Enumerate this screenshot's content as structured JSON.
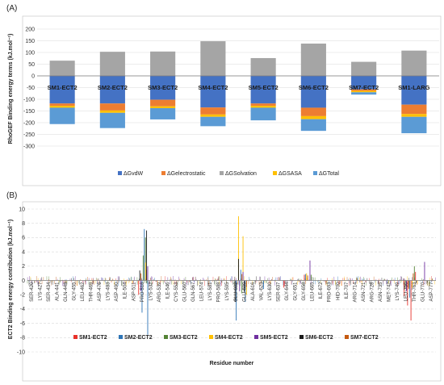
{
  "chart_data": [
    {
      "type": "bar",
      "panel_label": "(A)",
      "stacked": true,
      "ylabel": "RhoGEF Binding energy terms (kJ.mol⁻¹)",
      "ylim": [
        -300,
        200
      ],
      "yticks": [
        -300,
        -250,
        -200,
        -150,
        -100,
        -50,
        0,
        50,
        100,
        150,
        200
      ],
      "grid": true,
      "legend_position": "bottom",
      "categories": [
        "SM1-ECT2",
        "SM2-ECT2",
        "SM3-ECT2",
        "SM4-ECT2",
        "SM5-ECT2",
        "SM6-ECT2",
        "SM7-ECT2",
        "SM1-LARG"
      ],
      "series": [
        {
          "name": "ΔGvdW",
          "color": "#4472c4",
          "values": [
            -118,
            -118,
            -102,
            -135,
            -118,
            -136,
            -58,
            -123
          ]
        },
        {
          "name": "ΔGelectrostatic",
          "color": "#ed7d31",
          "values": [
            -10,
            -30,
            -28,
            -30,
            -10,
            -36,
            -6,
            -40
          ]
        },
        {
          "name": "ΔGSolvation",
          "color": "#a5a5a5",
          "values": [
            65,
            103,
            104,
            148,
            76,
            138,
            60,
            108
          ]
        },
        {
          "name": "ΔGSASA",
          "color": "#ffc000",
          "values": [
            -8,
            -10,
            -8,
            -10,
            -8,
            -13,
            -6,
            -12
          ]
        },
        {
          "name": "ΔGTotal",
          "color": "#5b9bd5",
          "values": [
            -70,
            -65,
            -48,
            -40,
            -54,
            -50,
            -10,
            -70
          ]
        }
      ]
    },
    {
      "type": "bar",
      "panel_label": "(B)",
      "ylabel": "ECT2 Binding energy contribution (kJ.mol⁻¹)",
      "xlabel": "Residue number",
      "ylim": [
        -10,
        10
      ],
      "yticks": [
        -10,
        -8,
        -6,
        -4,
        -2,
        0,
        2,
        4,
        6,
        8,
        10
      ],
      "grid": true,
      "legend_position": "bottom",
      "categories": [
        "SER-420",
        "LYS-427",
        "SER-434",
        "ALA-441",
        "GLN-448",
        "GLY-455",
        "LEU-462",
        "THR-469",
        "ASP-476",
        "LYS-483",
        "ASP-490",
        "ILE-504",
        "ASP-511",
        "PRO-518",
        "LYS-532",
        "ARG-539",
        "ILE-546",
        "CYS-553",
        "GLU-560",
        "GLN-567",
        "LEU-574",
        "LYS-581",
        "PRO-588",
        "LYS-595",
        "GLU-602",
        "GLU-609",
        "ALA-616",
        "VAL-623",
        "LYS-630",
        "SER-637",
        "GLY-644",
        "GLY-651",
        "GLY-658",
        "LEU-665",
        "ILE-672",
        "PRO-693",
        "HID-700",
        "ILE-707",
        "ARG-714",
        "ASN-721",
        "ARG-728",
        "ASN-735",
        "MET-742",
        "LYS-749",
        "LEU-756",
        "THR-763",
        "GLU-770",
        "ASP-777"
      ],
      "residue_start": 420,
      "residue_end": 780,
      "series": [
        {
          "name": "SM1-ECT2",
          "color": "#e8312a",
          "spikes": [
            [
              518,
              -2.0
            ],
            [
              525,
              1.5
            ],
            [
              604,
              -1.2
            ],
            [
              646,
              -1.0
            ],
            [
              664,
              0.8
            ],
            [
              752,
              -2.2
            ],
            [
              755,
              -3.5
            ],
            [
              758,
              -5.6
            ],
            [
              762,
              1.2
            ]
          ]
        },
        {
          "name": "SM2-ECT2",
          "color": "#2e75b6",
          "spikes": [
            [
              521,
              -4.5
            ],
            [
              523,
              7.2
            ],
            [
              526,
              -7.6
            ],
            [
              604,
              -5.6
            ],
            [
              608,
              1.5
            ],
            [
              612,
              -3.0
            ],
            [
              628,
              -1.2
            ],
            [
              665,
              0.9
            ],
            [
              757,
              -2.4
            ]
          ]
        },
        {
          "name": "SM3-ECT2",
          "color": "#548235",
          "spikes": [
            [
              522,
              3.5
            ],
            [
              524,
              6.0
            ],
            [
              606,
              3.2
            ],
            [
              609,
              -1.8
            ],
            [
              670,
              0.8
            ],
            [
              753,
              -1.2
            ],
            [
              761,
              2.0
            ]
          ]
        },
        {
          "name": "SM4-ECT2",
          "color": "#ffc000",
          "spikes": [
            [
              524,
              2.5
            ],
            [
              606,
              9.0
            ],
            [
              610,
              6.2
            ],
            [
              613,
              -2.0
            ],
            [
              666,
              1.0
            ],
            [
              759,
              -1.0
            ]
          ]
        },
        {
          "name": "SM5-ECT2",
          "color": "#7030a0",
          "spikes": [
            [
              520,
              -1.5
            ],
            [
              526,
              2.0
            ],
            [
              607,
              -1.5
            ],
            [
              610,
              1.2
            ],
            [
              669,
              2.8
            ],
            [
              754,
              -1.5
            ],
            [
              770,
              2.6
            ]
          ]
        },
        {
          "name": "SM6-ECT2",
          "color": "#1a1a1a",
          "spikes": [
            [
              519,
              1.4
            ],
            [
              525,
              7.0
            ],
            [
              603,
              -3.0
            ],
            [
              606,
              3.0
            ],
            [
              611,
              -1.6
            ],
            [
              756,
              -1.0
            ]
          ]
        },
        {
          "name": "SM7-ECT2",
          "color": "#c55a11",
          "spikes": [
            [
              520,
              1.0
            ],
            [
              609,
              0.9
            ],
            [
              613,
              -0.9
            ],
            [
              667,
              0.7
            ],
            [
              756,
              -1.2
            ],
            [
              760,
              1.0
            ]
          ]
        }
      ]
    }
  ]
}
